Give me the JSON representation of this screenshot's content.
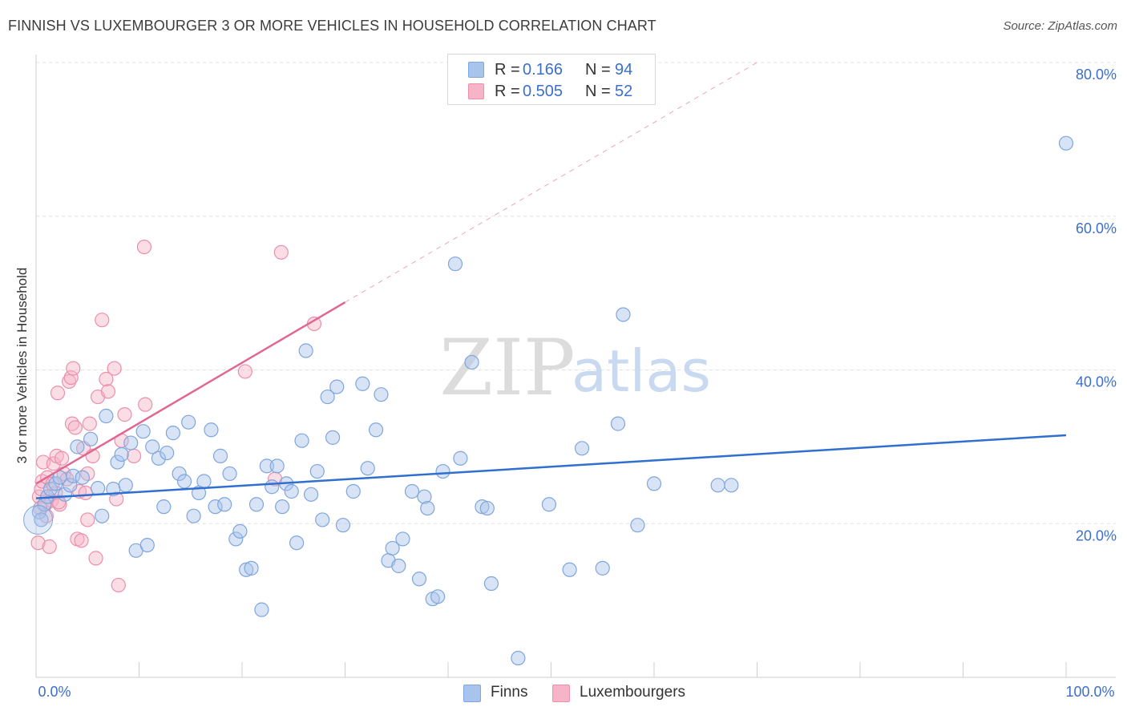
{
  "title": "FINNISH VS LUXEMBOURGER 3 OR MORE VEHICLES IN HOUSEHOLD CORRELATION CHART",
  "source": "Source: ZipAtlas.com",
  "legend": {
    "rows": [
      {
        "r_label": "R =",
        "r_value": "0.166",
        "n_label": "N =",
        "n_value": "94",
        "color": "#a8c4ec"
      },
      {
        "r_label": "R =",
        "r_value": "0.505",
        "n_label": "N =",
        "n_value": "52",
        "color": "#f6b4c8"
      }
    ]
  },
  "bottom_legend": [
    {
      "label": "Finns",
      "color": "#a8c4ec"
    },
    {
      "label": "Luxembourgers",
      "color": "#f6b4c8"
    }
  ],
  "watermark": {
    "zip": "ZIP",
    "atlas": "atlas"
  },
  "chart_data": {
    "type": "scatter",
    "title": "FINNISH VS LUXEMBOURGER 3 OR MORE VEHICLES IN HOUSEHOLD CORRELATION CHART",
    "xlabel": "",
    "ylabel": "3 or more Vehicles in Household",
    "xlim": [
      0,
      100
    ],
    "ylim": [
      0,
      80
    ],
    "x_tick_labels": [
      {
        "value": 0,
        "label": "0.0%"
      },
      {
        "value": 100,
        "label": "100.0%"
      }
    ],
    "y_tick_labels": [
      {
        "value": 20,
        "label": "20.0%"
      },
      {
        "value": 40,
        "label": "40.0%"
      },
      {
        "value": 60,
        "label": "60.0%"
      },
      {
        "value": 80,
        "label": "80.0%"
      }
    ],
    "grid": true,
    "series": [
      {
        "name": "Finns",
        "color": "#a8c4ec",
        "stroke": "#7ea6dd",
        "trend_color": "#2f6fd0",
        "trend": {
          "x0": 0,
          "y0": 23.3,
          "x1": 100,
          "y1": 31.5
        },
        "points": [
          [
            0.3,
            21.5
          ],
          [
            0.5,
            20.5
          ],
          [
            0.8,
            22.5
          ],
          [
            1.1,
            23.5
          ],
          [
            1.4,
            24.5
          ],
          [
            1.9,
            25.2
          ],
          [
            2.3,
            26
          ],
          [
            2.8,
            23.8
          ],
          [
            3.3,
            25
          ],
          [
            3.6,
            26.2
          ],
          [
            4,
            30
          ],
          [
            4.5,
            26
          ],
          [
            5.3,
            31
          ],
          [
            6,
            24.6
          ],
          [
            6.4,
            21
          ],
          [
            6.8,
            34
          ],
          [
            7.5,
            24.5
          ],
          [
            7.9,
            28
          ],
          [
            8.3,
            29
          ],
          [
            8.7,
            25
          ],
          [
            9.2,
            30.5
          ],
          [
            9.7,
            16.5
          ],
          [
            10.4,
            32
          ],
          [
            10.8,
            17.2
          ],
          [
            11.3,
            30
          ],
          [
            11.9,
            28.5
          ],
          [
            12.4,
            22.2
          ],
          [
            12.7,
            29.2
          ],
          [
            13.3,
            31.8
          ],
          [
            13.9,
            26.5
          ],
          [
            14.4,
            25.5
          ],
          [
            14.8,
            33.2
          ],
          [
            15.3,
            21
          ],
          [
            15.8,
            24
          ],
          [
            16.3,
            25.5
          ],
          [
            17,
            32.2
          ],
          [
            17.4,
            22.2
          ],
          [
            17.9,
            28.8
          ],
          [
            18.3,
            22.5
          ],
          [
            18.8,
            26.5
          ],
          [
            19.4,
            18
          ],
          [
            19.8,
            19
          ],
          [
            20.4,
            14
          ],
          [
            20.9,
            14.2
          ],
          [
            21.4,
            22.5
          ],
          [
            21.9,
            8.8
          ],
          [
            22.4,
            27.5
          ],
          [
            22.9,
            24.8
          ],
          [
            23.4,
            27.5
          ],
          [
            23.9,
            22.2
          ],
          [
            24.3,
            25.2
          ],
          [
            24.8,
            24.2
          ],
          [
            25.3,
            17.5
          ],
          [
            25.8,
            30.8
          ],
          [
            26.2,
            42.5
          ],
          [
            26.7,
            23.8
          ],
          [
            27.3,
            26.8
          ],
          [
            27.8,
            20.5
          ],
          [
            28.3,
            36.5
          ],
          [
            28.8,
            31.2
          ],
          [
            29.2,
            37.8
          ],
          [
            29.8,
            19.8
          ],
          [
            30.8,
            24.2
          ],
          [
            31.7,
            38.2
          ],
          [
            32.2,
            27.2
          ],
          [
            33,
            32.2
          ],
          [
            33.5,
            36.8
          ],
          [
            34.2,
            15.2
          ],
          [
            34.6,
            16.8
          ],
          [
            35.2,
            14.5
          ],
          [
            35.6,
            18
          ],
          [
            36.5,
            24.2
          ],
          [
            37.2,
            12.8
          ],
          [
            37.7,
            23.5
          ],
          [
            38,
            22
          ],
          [
            38.5,
            10.2
          ],
          [
            39,
            10.5
          ],
          [
            39.5,
            26.8
          ],
          [
            40.7,
            53.8
          ],
          [
            41.2,
            28.5
          ],
          [
            42.3,
            41
          ],
          [
            43.3,
            22.2
          ],
          [
            43.8,
            22
          ],
          [
            44.2,
            12.2
          ],
          [
            46.8,
            2.5
          ],
          [
            49.8,
            22.5
          ],
          [
            51.8,
            14
          ],
          [
            53,
            29.8
          ],
          [
            55,
            14.2
          ],
          [
            56.5,
            33
          ],
          [
            57,
            47.2
          ],
          [
            58.4,
            19.8
          ],
          [
            60,
            25.2
          ],
          [
            66.2,
            25
          ],
          [
            67.5,
            25
          ],
          [
            100,
            69.5
          ]
        ]
      },
      {
        "name": "Luxembourgers",
        "color": "#f6b4c8",
        "stroke": "#ec8fab",
        "trend_color": "#e06890",
        "trend": {
          "x0": 0,
          "y0": 25.2,
          "x1": 30,
          "y1": 48.8
        },
        "trend_extension": {
          "x0": 30,
          "y0": 48.8,
          "x1": 70,
          "y1": 80
        },
        "points": [
          [
            0.2,
            17.5
          ],
          [
            0.3,
            23.5
          ],
          [
            0.5,
            24.5
          ],
          [
            0.6,
            25.5
          ],
          [
            0.7,
            28
          ],
          [
            0.9,
            22.5
          ],
          [
            1.1,
            26
          ],
          [
            1.3,
            17
          ],
          [
            1.5,
            23
          ],
          [
            1.7,
            27.8
          ],
          [
            1.9,
            24
          ],
          [
            2,
            28.8
          ],
          [
            2.1,
            37
          ],
          [
            2.3,
            22.5
          ],
          [
            2.5,
            28.5
          ],
          [
            2.7,
            26.5
          ],
          [
            3,
            25.8
          ],
          [
            3.2,
            38.5
          ],
          [
            3.4,
            39
          ],
          [
            3.5,
            33
          ],
          [
            3.6,
            40.2
          ],
          [
            3.8,
            32.5
          ],
          [
            4,
            18
          ],
          [
            4.2,
            24.2
          ],
          [
            4.4,
            17.8
          ],
          [
            4.6,
            29.8
          ],
          [
            4.8,
            24
          ],
          [
            5,
            26.5
          ],
          [
            5.2,
            33
          ],
          [
            5.5,
            28.8
          ],
          [
            5.8,
            15.5
          ],
          [
            6,
            36.5
          ],
          [
            6.4,
            46.5
          ],
          [
            6.8,
            38.8
          ],
          [
            7,
            37.2
          ],
          [
            7.6,
            40.2
          ],
          [
            7.8,
            23.2
          ],
          [
            8,
            12
          ],
          [
            8.3,
            30.8
          ],
          [
            8.6,
            34.2
          ],
          [
            9.5,
            28.8
          ],
          [
            10.5,
            56
          ],
          [
            10.6,
            35.5
          ],
          [
            20.3,
            39.8
          ],
          [
            23.2,
            25.8
          ],
          [
            23.8,
            55.3
          ],
          [
            27,
            46
          ],
          [
            0.4,
            22
          ],
          [
            1,
            21
          ],
          [
            1.6,
            25.2
          ],
          [
            2.2,
            22.8
          ],
          [
            5,
            20.5
          ]
        ]
      }
    ]
  }
}
